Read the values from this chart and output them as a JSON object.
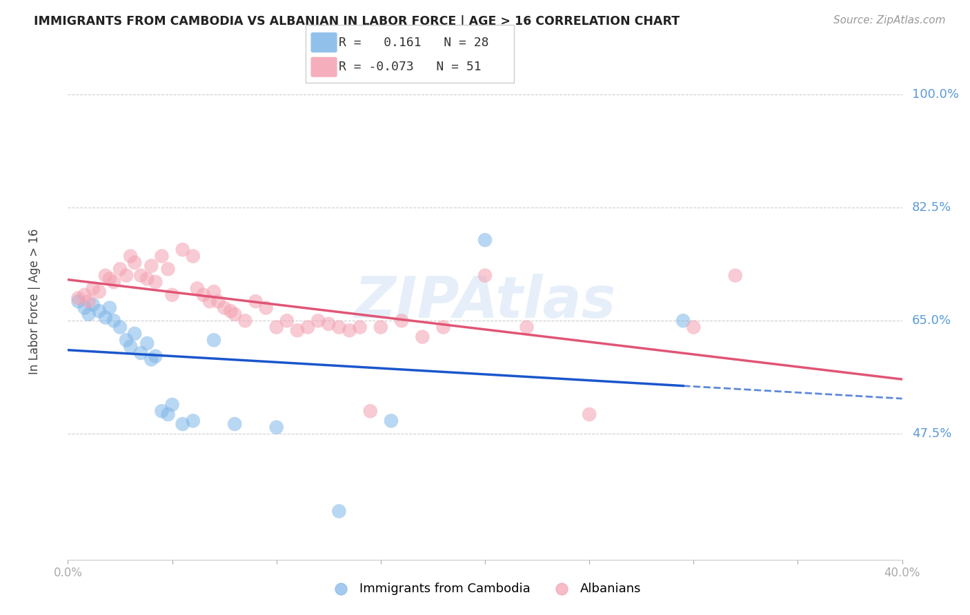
{
  "title": "IMMIGRANTS FROM CAMBODIA VS ALBANIAN IN LABOR FORCE | AGE > 16 CORRELATION CHART",
  "source": "Source: ZipAtlas.com",
  "ylabel": "In Labor Force | Age > 16",
  "ytick_labels": [
    "100.0%",
    "82.5%",
    "65.0%",
    "47.5%"
  ],
  "ytick_values": [
    1.0,
    0.825,
    0.65,
    0.475
  ],
  "xlim": [
    0.0,
    0.4
  ],
  "ylim": [
    0.28,
    1.08
  ],
  "legend_cambodia_R": "0.161",
  "legend_cambodia_N": "28",
  "legend_albanian_R": "-0.073",
  "legend_albanian_N": "51",
  "cambodia_color": "#7EB6E8",
  "albanian_color": "#F4A0B0",
  "trend_cambodia_color": "#1A56CC",
  "trend_albanian_color": "#E05575",
  "watermark": "ZIPAtlas",
  "cambodia_x": [
    0.005,
    0.008,
    0.01,
    0.012,
    0.015,
    0.018,
    0.02,
    0.022,
    0.025,
    0.028,
    0.03,
    0.032,
    0.035,
    0.038,
    0.04,
    0.042,
    0.045,
    0.048,
    0.05,
    0.055,
    0.06,
    0.07,
    0.08,
    0.1,
    0.13,
    0.155,
    0.2,
    0.295
  ],
  "cambodia_y": [
    0.68,
    0.67,
    0.66,
    0.675,
    0.665,
    0.655,
    0.67,
    0.65,
    0.64,
    0.62,
    0.61,
    0.63,
    0.6,
    0.615,
    0.59,
    0.595,
    0.51,
    0.505,
    0.52,
    0.49,
    0.495,
    0.62,
    0.49,
    0.485,
    0.355,
    0.495,
    0.775,
    0.65
  ],
  "albanian_x": [
    0.005,
    0.008,
    0.01,
    0.012,
    0.015,
    0.018,
    0.02,
    0.022,
    0.025,
    0.028,
    0.03,
    0.032,
    0.035,
    0.038,
    0.04,
    0.042,
    0.045,
    0.048,
    0.05,
    0.055,
    0.06,
    0.062,
    0.065,
    0.068,
    0.07,
    0.072,
    0.075,
    0.078,
    0.08,
    0.085,
    0.09,
    0.095,
    0.1,
    0.105,
    0.11,
    0.115,
    0.12,
    0.125,
    0.13,
    0.135,
    0.14,
    0.145,
    0.15,
    0.16,
    0.17,
    0.18,
    0.2,
    0.22,
    0.25,
    0.3,
    0.32
  ],
  "albanian_y": [
    0.685,
    0.69,
    0.68,
    0.7,
    0.695,
    0.72,
    0.715,
    0.71,
    0.73,
    0.72,
    0.75,
    0.74,
    0.72,
    0.715,
    0.735,
    0.71,
    0.75,
    0.73,
    0.69,
    0.76,
    0.75,
    0.7,
    0.69,
    0.68,
    0.695,
    0.68,
    0.67,
    0.665,
    0.66,
    0.65,
    0.68,
    0.67,
    0.64,
    0.65,
    0.635,
    0.64,
    0.65,
    0.645,
    0.64,
    0.635,
    0.64,
    0.51,
    0.64,
    0.65,
    0.625,
    0.64,
    0.72,
    0.64,
    0.505,
    0.64,
    0.72
  ]
}
